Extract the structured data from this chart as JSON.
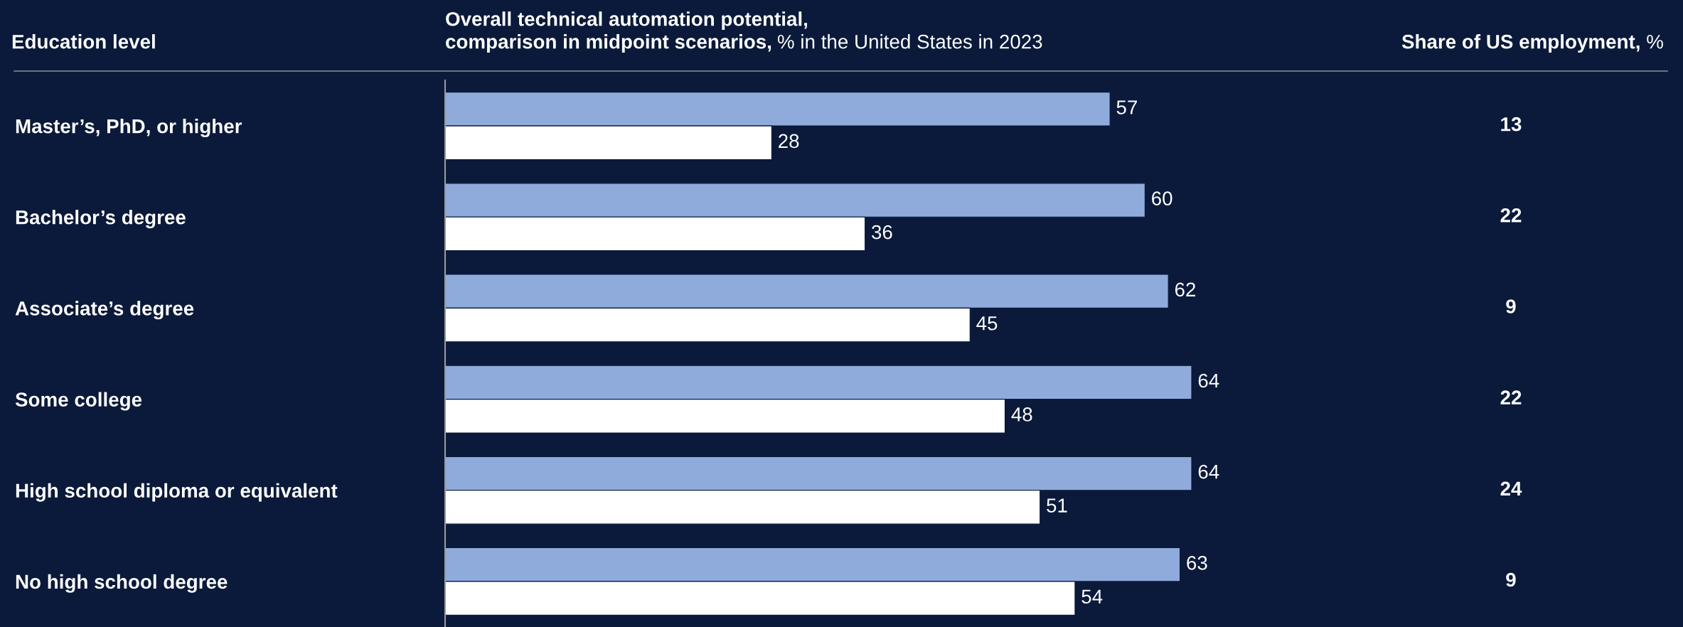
{
  "chart_data": [
    {
      "type": "bar",
      "orientation": "horizontal",
      "title": "Overall technical automation potential,\ncomparison in midpoint scenarios,",
      "subtitle": " % in the United States in 2023",
      "ylabel": "Education level",
      "categories": [
        "Master’s, PhD, or higher",
        "Bachelor’s degree",
        "Associate’s degree",
        "Some college",
        "High school diploma or equivalent",
        "No high school degree"
      ],
      "series": [
        {
          "color": "#8eabdb",
          "values": [
            57,
            60,
            62,
            64,
            64,
            63
          ]
        },
        {
          "color": "#ffffff",
          "values": [
            28,
            36,
            45,
            48,
            51,
            54
          ]
        }
      ],
      "data_labels": true,
      "tick_labels": "y",
      "grid": false,
      "legend": false
    },
    {
      "type": "other",
      "title": "Share of US employment,",
      "subtitle": " %",
      "categories": [
        null,
        null,
        null,
        null,
        null,
        null
      ],
      "values": [
        13,
        22,
        9,
        22,
        24,
        9
      ],
      "data_labels": true
    }
  ]
}
